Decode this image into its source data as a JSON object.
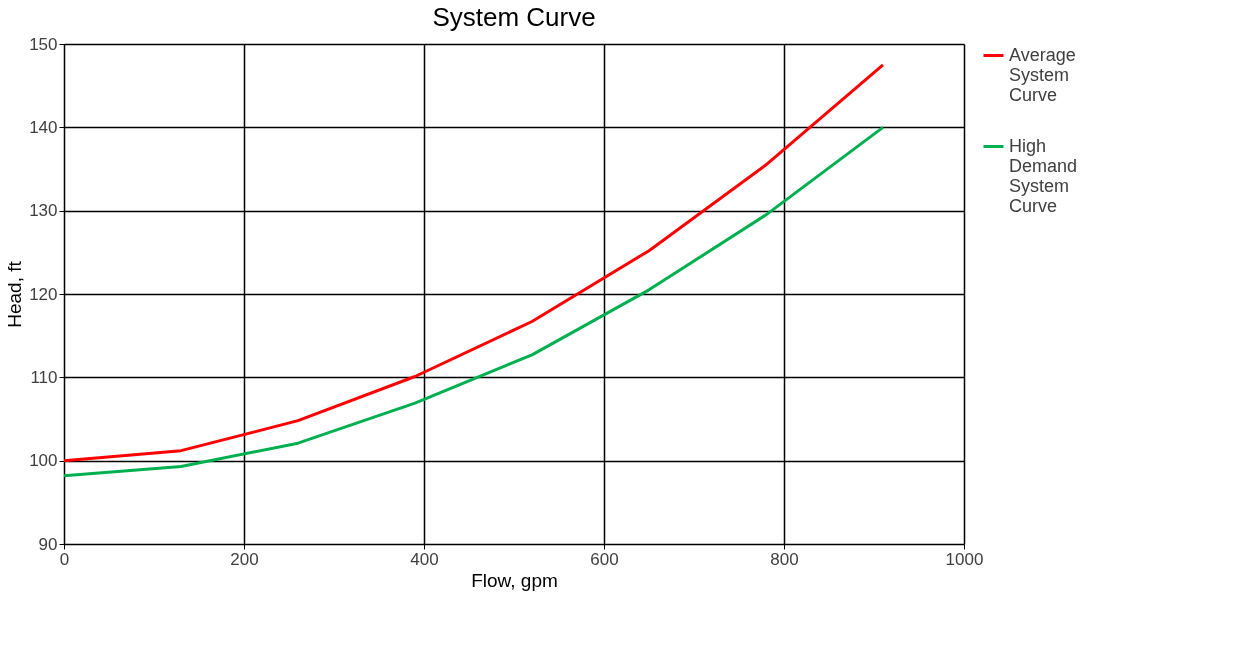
{
  "chart_data": {
    "type": "line",
    "title": "System Curve",
    "xlabel": "Flow, gpm",
    "ylabel": "Head, ft",
    "x": [
      0,
      130,
      260,
      390,
      520,
      650,
      780,
      910
    ],
    "series": [
      {
        "name": "Average System Curve",
        "color": "#ff0000",
        "values": [
          100,
          101.2,
          104.8,
          110.1,
          116.7,
          125.2,
          135.5,
          147.5
        ]
      },
      {
        "name": "High Demand System Curve",
        "color": "#00b050",
        "values": [
          98.2,
          99.3,
          102.1,
          106.9,
          112.7,
          120.5,
          129.5,
          140
        ]
      }
    ],
    "xlim": [
      0,
      1000
    ],
    "xticks": [
      0,
      200,
      400,
      600,
      800,
      1000
    ],
    "ylim": [
      90,
      150
    ],
    "yticks": [
      90,
      100,
      110,
      120,
      130,
      140,
      150
    ],
    "grid": true,
    "legend": "right",
    "marker": "none",
    "line_style": "solid"
  }
}
